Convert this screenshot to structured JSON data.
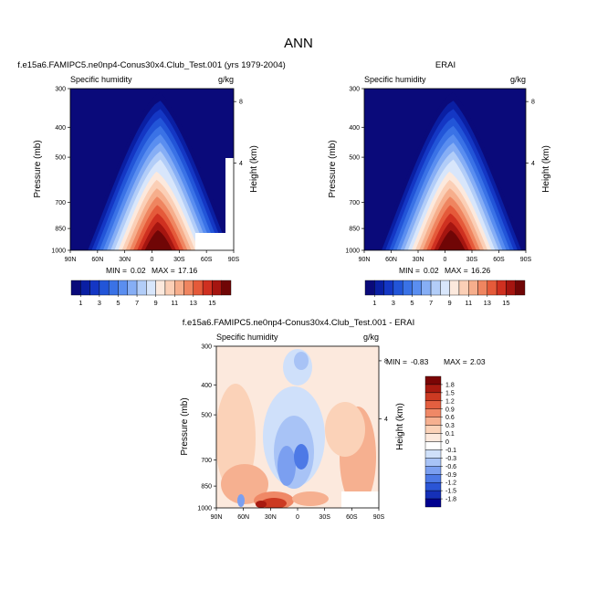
{
  "figure": {
    "title": "ANN"
  },
  "colors": {
    "qscale": [
      "#0a0a7a",
      "#0a1fa3",
      "#1437c4",
      "#2255d8",
      "#3a72e6",
      "#5a8ef0",
      "#86aef5",
      "#b2cdf8",
      "#d8e6fb",
      "#fce9dd",
      "#fbcfb6",
      "#f6ae8c",
      "#ef8560",
      "#e55a3a",
      "#cf3020",
      "#a51510",
      "#700606"
    ],
    "dscale": [
      "#00008f",
      "#1530b8",
      "#2b55d6",
      "#4d79e6",
      "#7b9ff0",
      "#a8c3f6",
      "#cfe0fa",
      "#ffffff",
      "#fce9dd",
      "#fbd2b8",
      "#f6b090",
      "#ef8866",
      "#e35f40",
      "#cc3a22",
      "#a81a10",
      "#7a0505"
    ],
    "background": "#ffffff"
  },
  "chart_data": [
    {
      "type": "contour",
      "title": "f.e15a6.FAMIPC5.ne0np4-Conus30x4.Club_Test.001 (yrs 1979-2004)",
      "subtitle_left": "Specific humidity",
      "subtitle_right": "g/kg",
      "xlabel": "",
      "ylabel": "Pressure (mb)",
      "y2label": "Height (km)",
      "x_ticks": [
        "90N",
        "60N",
        "30N",
        "0",
        "30S",
        "60S",
        "90S"
      ],
      "y_ticks": [
        "300",
        "400",
        "500",
        "700",
        "850",
        "1000"
      ],
      "y2_ticks": [
        "8",
        "4"
      ],
      "stats": {
        "min_label": "MIN =",
        "min": "0.02",
        "max_label": "MAX =",
        "max": "17.16"
      },
      "colorbar_ticks": [
        "1",
        "3",
        "5",
        "7",
        "9",
        "11",
        "13",
        "15"
      ],
      "zlim": [
        0,
        17.16
      ]
    },
    {
      "type": "contour",
      "title": "ERAI",
      "subtitle_left": "Specific humidity",
      "subtitle_right": "g/kg",
      "xlabel": "",
      "ylabel": "Pressure (mb)",
      "y2label": "Height (km)",
      "x_ticks": [
        "90N",
        "60N",
        "30N",
        "0",
        "30S",
        "60S",
        "90S"
      ],
      "y_ticks": [
        "300",
        "400",
        "500",
        "700",
        "850",
        "1000"
      ],
      "y2_ticks": [
        "8",
        "4"
      ],
      "stats": {
        "min_label": "MIN =",
        "min": "0.02",
        "max_label": "MAX =",
        "max": "16.26"
      },
      "colorbar_ticks": [
        "1",
        "3",
        "5",
        "7",
        "9",
        "11",
        "13",
        "15"
      ],
      "zlim": [
        0,
        16.26
      ]
    },
    {
      "type": "contour",
      "title": "f.e15a6.FAMIPC5.ne0np4-Conus30x4.Club_Test.001 - ERAI",
      "subtitle_left": "Specific humidity",
      "subtitle_right": "g/kg",
      "xlabel": "",
      "ylabel": "Pressure (mb)",
      "y2label": "Height (km)",
      "x_ticks": [
        "90N",
        "60N",
        "30N",
        "0",
        "30S",
        "60S",
        "90S"
      ],
      "y_ticks": [
        "300",
        "400",
        "500",
        "700",
        "850",
        "1000"
      ],
      "y2_ticks": [
        "8",
        "4"
      ],
      "stats": {
        "min_label": "MIN =",
        "min": "-0.83",
        "max_label": "MAX =",
        "max": "2.03"
      },
      "colorbar_ticks": [
        "1.8",
        "1.5",
        "1.2",
        "0.9",
        "0.6",
        "0.3",
        "0.1",
        "0",
        "-0.1",
        "-0.3",
        "-0.6",
        "-0.9",
        "-1.2",
        "-1.5",
        "-1.8"
      ],
      "zlim": [
        -0.83,
        2.03
      ]
    }
  ]
}
